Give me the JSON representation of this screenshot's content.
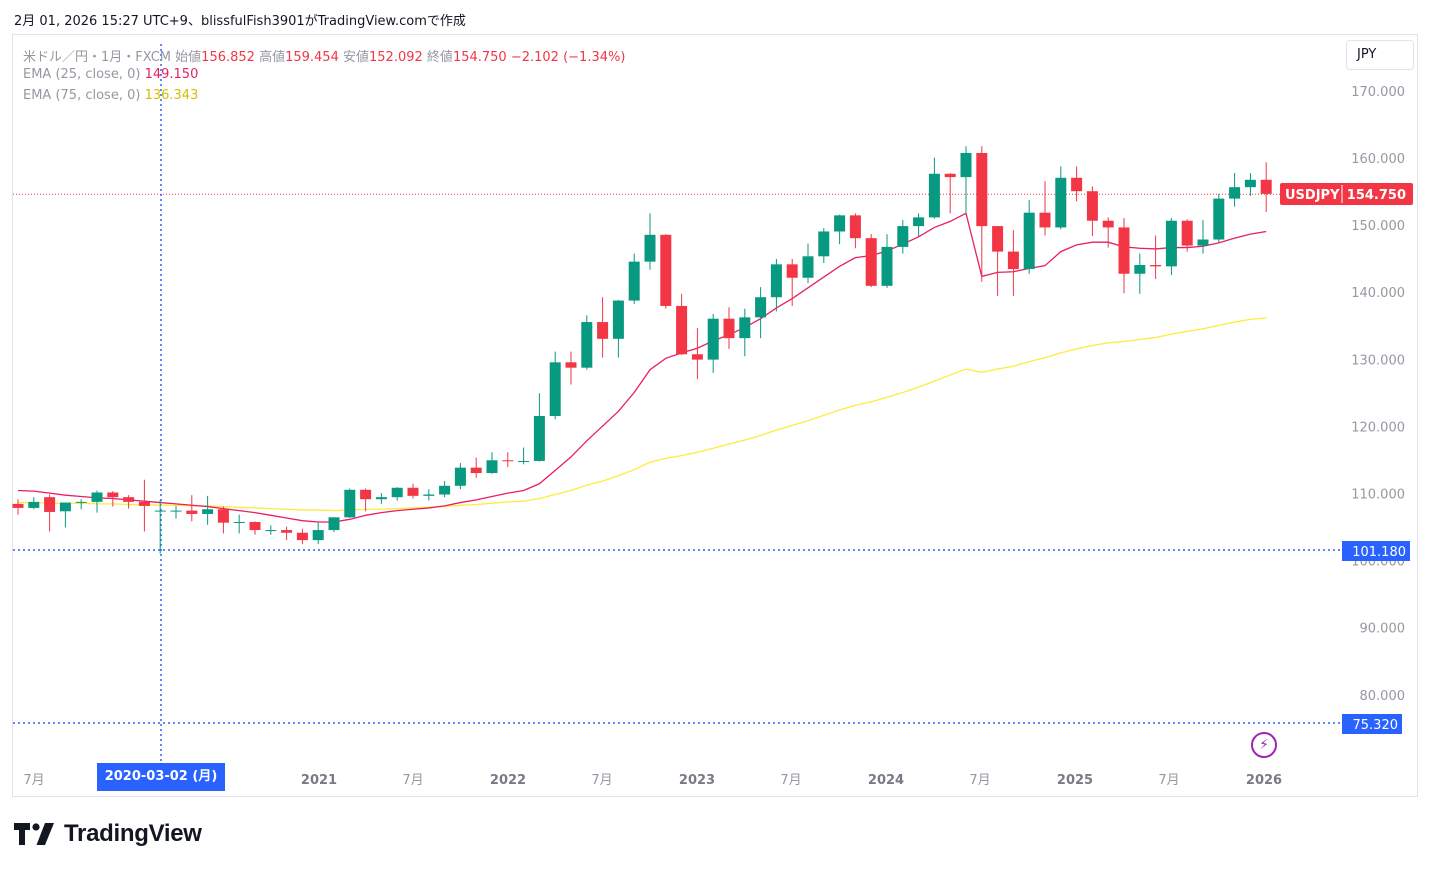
{
  "header": {
    "timestamp_line": "2月 01, 2026 15:27 UTC+9、blissfulFish3901がTradingView.comで作成"
  },
  "legend": {
    "symbol_line": "米ドル／円・1月・FXCM",
    "open_label": "始値",
    "open": "156.852",
    "high_label": "高値",
    "high": "159.454",
    "low_label": "安値",
    "low": "152.092",
    "close_label": "終値",
    "close": "154.750",
    "change": "−2.102 (−1.34%)",
    "ema25_label": "EMA (25, close, 0)",
    "ema25_value": "149.150",
    "ema75_label": "EMA (75, close, 0)",
    "ema75_value": "136.343"
  },
  "currency_button": "JPY",
  "price_tags": {
    "symbol": "USDJPY",
    "last": "154.750",
    "crosshair": "101.180",
    "lower": "75.320"
  },
  "crosshair_date": "2020-03-02 (月)",
  "brand": {
    "name": "TradingView"
  },
  "colors": {
    "up": "#089981",
    "down": "#f23645",
    "ema25": "#e91e63",
    "ema75": "#ffeb3b",
    "crosshair": "#2962ff"
  },
  "chart_data": {
    "type": "candlestick",
    "interval": "1M",
    "yaxis_ticks": [
      "170.000",
      "160.000",
      "150.000",
      "140.000",
      "130.000",
      "120.000",
      "110.000",
      "100.000",
      "90.000",
      "80.000"
    ],
    "ylim": [
      70,
      177
    ],
    "xaxis_ticks": [
      "7月",
      "2021",
      "7月",
      "2022",
      "7月",
      "2023",
      "7月",
      "2024",
      "7月",
      "2025",
      "7月",
      "2026"
    ],
    "candles": [
      [
        108.6,
        109.3,
        107.0,
        108.0
      ],
      [
        108.0,
        109.6,
        107.8,
        108.9
      ],
      [
        109.6,
        110.0,
        104.5,
        107.4
      ],
      [
        107.5,
        108.4,
        105.1,
        108.8
      ],
      [
        108.8,
        109.3,
        107.8,
        108.9
      ],
      [
        108.9,
        110.6,
        107.3,
        110.3
      ],
      [
        110.3,
        110.5,
        108.2,
        109.6
      ],
      [
        109.6,
        109.9,
        107.9,
        108.9
      ],
      [
        108.9,
        112.2,
        104.5,
        108.3
      ],
      [
        107.5,
        109.2,
        101.2,
        107.6
      ],
      [
        107.6,
        108.3,
        106.4,
        107.6
      ],
      [
        107.6,
        109.9,
        106.0,
        107.1
      ],
      [
        107.1,
        109.8,
        105.5,
        107.8
      ],
      [
        107.8,
        108.2,
        104.2,
        105.8
      ],
      [
        105.8,
        107.0,
        104.2,
        105.9
      ],
      [
        105.9,
        106.0,
        104.0,
        104.7
      ],
      [
        104.7,
        105.4,
        104.0,
        104.7
      ],
      [
        104.7,
        105.2,
        103.2,
        104.3
      ],
      [
        104.3,
        104.9,
        102.6,
        103.2
      ],
      [
        103.2,
        105.8,
        102.6,
        104.7
      ],
      [
        104.7,
        106.6,
        104.4,
        106.6
      ],
      [
        106.6,
        110.9,
        106.5,
        110.7
      ],
      [
        110.7,
        110.9,
        107.5,
        109.3
      ],
      [
        109.3,
        110.2,
        108.6,
        109.6
      ],
      [
        109.6,
        111.1,
        109.1,
        111.0
      ],
      [
        111.0,
        111.6,
        109.4,
        109.8
      ],
      [
        109.8,
        110.8,
        109.1,
        110.0
      ],
      [
        110.0,
        112.0,
        109.6,
        111.3
      ],
      [
        111.3,
        114.7,
        110.8,
        114.0
      ],
      [
        114.0,
        115.5,
        112.5,
        113.2
      ],
      [
        113.2,
        116.3,
        113.1,
        115.1
      ],
      [
        115.1,
        116.3,
        114.1,
        115.0
      ],
      [
        115.0,
        117.0,
        114.5,
        115.0
      ],
      [
        115.0,
        125.1,
        114.9,
        121.7
      ],
      [
        121.7,
        131.3,
        121.2,
        129.7
      ],
      [
        129.7,
        131.3,
        126.4,
        128.9
      ],
      [
        128.9,
        136.7,
        128.6,
        135.7
      ],
      [
        135.7,
        139.4,
        130.4,
        133.2
      ],
      [
        133.2,
        139.0,
        130.4,
        138.9
      ],
      [
        138.9,
        145.9,
        138.4,
        144.7
      ],
      [
        144.7,
        151.9,
        143.5,
        148.7
      ],
      [
        148.7,
        148.8,
        137.7,
        138.1
      ],
      [
        138.1,
        139.9,
        130.8,
        130.9
      ],
      [
        130.9,
        134.8,
        127.2,
        130.1
      ],
      [
        130.1,
        136.9,
        128.1,
        136.2
      ],
      [
        136.2,
        137.9,
        131.7,
        133.3
      ],
      [
        133.3,
        137.7,
        130.6,
        136.4
      ],
      [
        136.4,
        140.9,
        133.3,
        139.4
      ],
      [
        139.4,
        145.1,
        137.3,
        144.3
      ],
      [
        144.3,
        145.1,
        138.1,
        142.3
      ],
      [
        142.3,
        147.4,
        141.5,
        145.5
      ],
      [
        145.5,
        149.7,
        144.5,
        149.2
      ],
      [
        149.2,
        151.7,
        147.3,
        151.6
      ],
      [
        151.6,
        151.9,
        146.7,
        148.2
      ],
      [
        148.2,
        148.8,
        140.9,
        141.1
      ],
      [
        141.1,
        148.8,
        140.8,
        146.9
      ],
      [
        146.9,
        150.9,
        145.9,
        150.0
      ],
      [
        150.0,
        151.9,
        148.5,
        151.3
      ],
      [
        151.3,
        160.2,
        151.1,
        157.8
      ],
      [
        157.8,
        157.9,
        151.9,
        157.3
      ],
      [
        157.3,
        161.9,
        151.9,
        160.9
      ],
      [
        160.9,
        161.9,
        141.7,
        150.0
      ],
      [
        150.0,
        150.0,
        139.6,
        146.2
      ],
      [
        146.2,
        149.4,
        139.6,
        143.6
      ],
      [
        143.6,
        153.9,
        142.9,
        152.0
      ],
      [
        152.0,
        156.7,
        148.6,
        149.8
      ],
      [
        149.8,
        158.9,
        149.5,
        157.2
      ],
      [
        157.2,
        158.9,
        153.7,
        155.2
      ],
      [
        155.2,
        155.9,
        148.5,
        150.8
      ],
      [
        150.8,
        151.3,
        146.8,
        149.8
      ],
      [
        149.8,
        151.2,
        140.0,
        142.9
      ],
      [
        142.9,
        145.9,
        139.9,
        144.2
      ],
      [
        144.2,
        148.6,
        142.1,
        144.0
      ],
      [
        144.0,
        151.2,
        142.7,
        150.8
      ],
      [
        150.8,
        151.0,
        146.2,
        147.1
      ],
      [
        147.1,
        150.9,
        145.9,
        148.0
      ],
      [
        148.0,
        154.8,
        147.6,
        154.1
      ],
      [
        154.1,
        157.9,
        152.9,
        155.8
      ],
      [
        155.8,
        157.9,
        154.5,
        156.9
      ],
      [
        156.9,
        159.5,
        152.1,
        154.8
      ]
    ],
    "ema25": [
      110.6,
      110.5,
      110.2,
      109.9,
      109.7,
      109.5,
      109.4,
      109.2,
      109.0,
      108.8,
      108.6,
      108.4,
      108.2,
      107.9,
      107.6,
      107.3,
      106.9,
      106.5,
      106.1,
      105.9,
      105.9,
      106.3,
      106.9,
      107.3,
      107.6,
      107.8,
      108.0,
      108.3,
      108.8,
      109.2,
      109.7,
      110.2,
      110.6,
      111.6,
      113.6,
      115.6,
      118.0,
      120.2,
      122.4,
      125.2,
      128.6,
      130.3,
      131.1,
      131.8,
      132.9,
      133.8,
      134.9,
      136.2,
      137.8,
      139.2,
      140.8,
      142.4,
      144.0,
      145.3,
      145.6,
      146.3,
      147.3,
      148.4,
      149.8,
      150.7,
      151.9,
      142.5,
      143.1,
      143.2,
      143.7,
      144.1,
      146.2,
      147.2,
      147.6,
      147.6,
      146.9,
      146.7,
      146.6,
      146.8,
      146.8,
      147.0,
      147.5,
      148.2,
      148.8,
      149.2
    ],
    "ema75": [
      108.8,
      108.8,
      108.7,
      108.7,
      108.7,
      108.6,
      108.6,
      108.5,
      108.5,
      108.4,
      108.4,
      108.3,
      108.3,
      108.2,
      108.1,
      108.0,
      107.9,
      107.8,
      107.7,
      107.7,
      107.6,
      107.7,
      107.8,
      107.8,
      107.9,
      108.0,
      108.1,
      108.2,
      108.4,
      108.5,
      108.7,
      108.9,
      109.0,
      109.4,
      110.0,
      110.6,
      111.4,
      112.0,
      112.8,
      113.7,
      114.8,
      115.4,
      115.8,
      116.3,
      116.9,
      117.5,
      118.1,
      118.8,
      119.6,
      120.3,
      121.0,
      121.8,
      122.6,
      123.3,
      123.8,
      124.5,
      125.2,
      126.0,
      126.9,
      127.8,
      128.7,
      128.2,
      128.7,
      129.1,
      129.8,
      130.4,
      131.1,
      131.7,
      132.2,
      132.6,
      132.8,
      133.1,
      133.4,
      133.9,
      134.3,
      134.7,
      135.2,
      135.7,
      136.1,
      136.3
    ]
  }
}
